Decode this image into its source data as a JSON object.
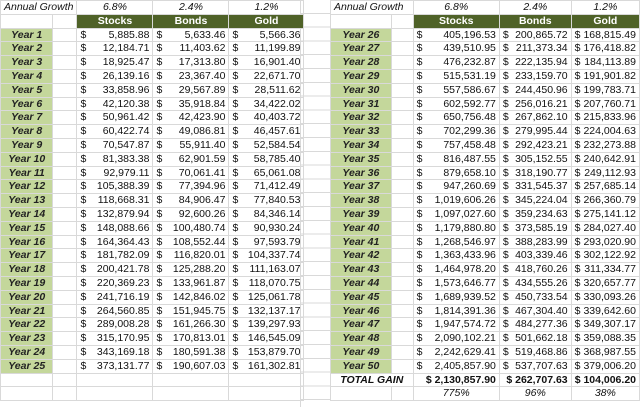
{
  "labels": {
    "annual_growth": "Annual Growth",
    "total_gain": "TOTAL GAIN",
    "currency": "$"
  },
  "rates": {
    "stocks": "6.8%",
    "bonds": "2.4%",
    "gold": "1.2%"
  },
  "headers": {
    "stocks": "Stocks",
    "bonds": "Bonds",
    "gold": "Gold"
  },
  "left_rows": [
    {
      "year": "Year 1",
      "stocks": "5,885.88",
      "bonds": "5,633.46",
      "gold": "5,566.36"
    },
    {
      "year": "Year 2",
      "stocks": "12,184.71",
      "bonds": "11,403.62",
      "gold": "11,199.89"
    },
    {
      "year": "Year 3",
      "stocks": "18,925.47",
      "bonds": "17,313.80",
      "gold": "16,901.40"
    },
    {
      "year": "Year 4",
      "stocks": "26,139.16",
      "bonds": "23,367.40",
      "gold": "22,671.70"
    },
    {
      "year": "Year 5",
      "stocks": "33,858.96",
      "bonds": "29,567.89",
      "gold": "28,511.62"
    },
    {
      "year": "Year 6",
      "stocks": "42,120.38",
      "bonds": "35,918.84",
      "gold": "34,422.02"
    },
    {
      "year": "Year 7",
      "stocks": "50,961.42",
      "bonds": "42,423.90",
      "gold": "40,403.72"
    },
    {
      "year": "Year 8",
      "stocks": "60,422.74",
      "bonds": "49,086.81",
      "gold": "46,457.61"
    },
    {
      "year": "Year 9",
      "stocks": "70,547.87",
      "bonds": "55,911.40",
      "gold": "52,584.54"
    },
    {
      "year": "Year 10",
      "stocks": "81,383.38",
      "bonds": "62,901.59",
      "gold": "58,785.40"
    },
    {
      "year": "Year 11",
      "stocks": "92,979.11",
      "bonds": "70,061.41",
      "gold": "65,061.08"
    },
    {
      "year": "Year 12",
      "stocks": "105,388.39",
      "bonds": "77,394.96",
      "gold": "71,412.49"
    },
    {
      "year": "Year 13",
      "stocks": "118,668.31",
      "bonds": "84,906.47",
      "gold": "77,840.53"
    },
    {
      "year": "Year 14",
      "stocks": "132,879.94",
      "bonds": "92,600.26",
      "gold": "84,346.14"
    },
    {
      "year": "Year 15",
      "stocks": "148,088.66",
      "bonds": "100,480.74",
      "gold": "90,930.24"
    },
    {
      "year": "Year 16",
      "stocks": "164,364.43",
      "bonds": "108,552.44",
      "gold": "97,593.79"
    },
    {
      "year": "Year 17",
      "stocks": "181,782.09",
      "bonds": "116,820.01",
      "gold": "104,337.74"
    },
    {
      "year": "Year 18",
      "stocks": "200,421.78",
      "bonds": "125,288.20",
      "gold": "111,163.07"
    },
    {
      "year": "Year 19",
      "stocks": "220,369.23",
      "bonds": "133,961.87",
      "gold": "118,070.75"
    },
    {
      "year": "Year 20",
      "stocks": "241,716.19",
      "bonds": "142,846.02",
      "gold": "125,061.78"
    },
    {
      "year": "Year 21",
      "stocks": "264,560.85",
      "bonds": "151,945.75",
      "gold": "132,137.17"
    },
    {
      "year": "Year 22",
      "stocks": "289,008.28",
      "bonds": "161,266.30",
      "gold": "139,297.93"
    },
    {
      "year": "Year 23",
      "stocks": "315,170.95",
      "bonds": "170,813.01",
      "gold": "146,545.09"
    },
    {
      "year": "Year 24",
      "stocks": "343,169.18",
      "bonds": "180,591.38",
      "gold": "153,879.70"
    },
    {
      "year": "Year 25",
      "stocks": "373,131.77",
      "bonds": "190,607.03",
      "gold": "161,302.81"
    }
  ],
  "right_rows": [
    {
      "year": "Year 26",
      "stocks": "405,196.53",
      "bonds": "200,865.72",
      "gold": "168,815.49"
    },
    {
      "year": "Year 27",
      "stocks": "439,510.95",
      "bonds": "211,373.34",
      "gold": "176,418.82"
    },
    {
      "year": "Year 28",
      "stocks": "476,232.87",
      "bonds": "222,135.94",
      "gold": "184,113.89"
    },
    {
      "year": "Year 29",
      "stocks": "515,531.19",
      "bonds": "233,159.70",
      "gold": "191,901.82"
    },
    {
      "year": "Year 30",
      "stocks": "557,586.67",
      "bonds": "244,450.96",
      "gold": "199,783.71"
    },
    {
      "year": "Year 31",
      "stocks": "602,592.77",
      "bonds": "256,016.21",
      "gold": "207,760.71"
    },
    {
      "year": "Year 32",
      "stocks": "650,756.48",
      "bonds": "267,862.10",
      "gold": "215,833.96"
    },
    {
      "year": "Year 33",
      "stocks": "702,299.36",
      "bonds": "279,995.44",
      "gold": "224,004.63"
    },
    {
      "year": "Year 34",
      "stocks": "757,458.48",
      "bonds": "292,423.21",
      "gold": "232,273.88"
    },
    {
      "year": "Year 35",
      "stocks": "816,487.55",
      "bonds": "305,152.55",
      "gold": "240,642.91"
    },
    {
      "year": "Year 36",
      "stocks": "879,658.10",
      "bonds": "318,190.77",
      "gold": "249,112.93"
    },
    {
      "year": "Year 37",
      "stocks": "947,260.69",
      "bonds": "331,545.37",
      "gold": "257,685.14"
    },
    {
      "year": "Year 38",
      "stocks": "1,019,606.26",
      "bonds": "345,224.04",
      "gold": "266,360.79"
    },
    {
      "year": "Year 39",
      "stocks": "1,097,027.60",
      "bonds": "359,234.63",
      "gold": "275,141.12"
    },
    {
      "year": "Year 40",
      "stocks": "1,179,880.80",
      "bonds": "373,585.19",
      "gold": "284,027.40"
    },
    {
      "year": "Year 41",
      "stocks": "1,268,546.97",
      "bonds": "388,283.99",
      "gold": "293,020.90"
    },
    {
      "year": "Year 42",
      "stocks": "1,363,433.96",
      "bonds": "403,339.46",
      "gold": "302,122.92"
    },
    {
      "year": "Year 43",
      "stocks": "1,464,978.20",
      "bonds": "418,760.26",
      "gold": "311,334.77"
    },
    {
      "year": "Year 44",
      "stocks": "1,573,646.77",
      "bonds": "434,555.26",
      "gold": "320,657.77"
    },
    {
      "year": "Year 45",
      "stocks": "1,689,939.52",
      "bonds": "450,733.54",
      "gold": "330,093.26"
    },
    {
      "year": "Year 46",
      "stocks": "1,814,391.36",
      "bonds": "467,304.40",
      "gold": "339,642.60"
    },
    {
      "year": "Year 47",
      "stocks": "1,947,574.72",
      "bonds": "484,277.36",
      "gold": "349,307.17"
    },
    {
      "year": "Year 48",
      "stocks": "2,090,102.21",
      "bonds": "501,662.18",
      "gold": "359,088.35"
    },
    {
      "year": "Year 49",
      "stocks": "2,242,629.41",
      "bonds": "519,468.86",
      "gold": "368,987.55"
    },
    {
      "year": "Year 50",
      "stocks": "2,405,857.90",
      "bonds": "537,707.63",
      "gold": "379,006.20"
    }
  ],
  "totals": {
    "stocks": "$ 2,130,857.90",
    "bonds": "$ 262,707.63",
    "gold": "$ 104,006.20"
  },
  "percent_gain": {
    "stocks": "775%",
    "bonds": "96%",
    "gold": "38%"
  },
  "colors": {
    "header_bg": "#4f6228",
    "year_bg": "#c4d79b",
    "grid": "#d9d9d9"
  }
}
